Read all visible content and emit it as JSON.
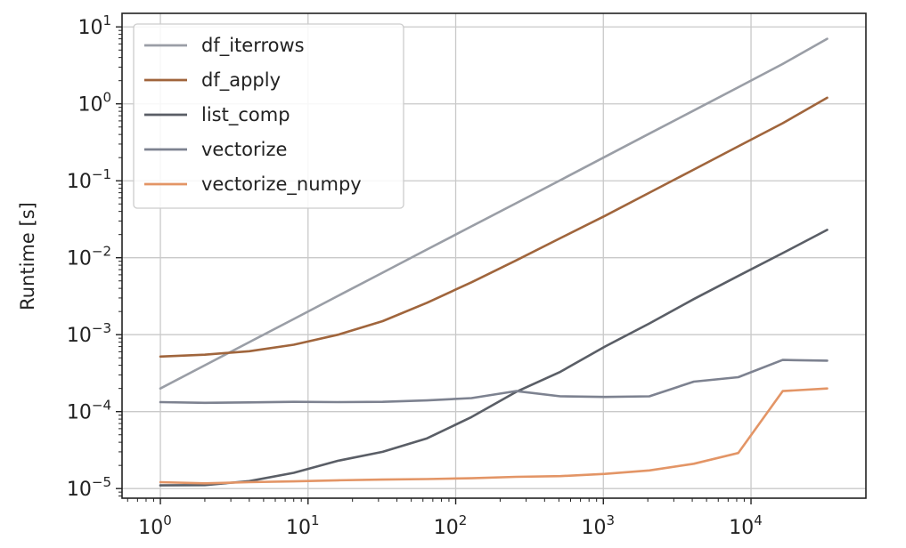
{
  "chart_data": {
    "type": "line",
    "title": "",
    "xlabel": "",
    "ylabel": "Runtime [s]",
    "xscale": "log",
    "yscale": "log",
    "xlim": [
      0.55,
      60000
    ],
    "ylim": [
      7.5e-06,
      15
    ],
    "grid": true,
    "legend_position": "top-left",
    "x_ticks": [
      {
        "base": "10",
        "exp": "0",
        "value": 1
      },
      {
        "base": "10",
        "exp": "1",
        "value": 10
      },
      {
        "base": "10",
        "exp": "2",
        "value": 100
      },
      {
        "base": "10",
        "exp": "3",
        "value": 1000
      },
      {
        "base": "10",
        "exp": "4",
        "value": 10000
      }
    ],
    "y_ticks": [
      {
        "base": "10",
        "exp": "−5",
        "value": 1e-05
      },
      {
        "base": "10",
        "exp": "−4",
        "value": 0.0001
      },
      {
        "base": "10",
        "exp": "−3",
        "value": 0.001
      },
      {
        "base": "10",
        "exp": "−2",
        "value": 0.01
      },
      {
        "base": "10",
        "exp": "−1",
        "value": 0.1
      },
      {
        "base": "10",
        "exp": "0",
        "value": 1
      },
      {
        "base": "10",
        "exp": "1",
        "value": 10
      }
    ],
    "x": [
      1,
      2,
      4,
      8,
      16,
      32,
      64,
      128,
      256,
      512,
      1024,
      2048,
      4096,
      8192,
      16384,
      32768
    ],
    "series": [
      {
        "name": "df_iterrows",
        "color": "#9a9ea6",
        "values": [
          0.0002,
          0.0004,
          0.0008,
          0.0016,
          0.0032,
          0.0064,
          0.0128,
          0.0256,
          0.051,
          0.102,
          0.205,
          0.41,
          0.82,
          1.64,
          3.3,
          7.0
        ]
      },
      {
        "name": "df_apply",
        "color": "#a0653c",
        "values": [
          0.00052,
          0.00055,
          0.00061,
          0.00074,
          0.001,
          0.0015,
          0.0026,
          0.0048,
          0.0092,
          0.018,
          0.035,
          0.07,
          0.14,
          0.28,
          0.56,
          1.2
        ]
      },
      {
        "name": "list_comp",
        "color": "#5a5e66",
        "values": [
          1.1e-05,
          1.11e-05,
          1.25e-05,
          1.6e-05,
          2.3e-05,
          3e-05,
          4.5e-05,
          8.5e-05,
          0.00018,
          0.00033,
          0.0007,
          0.0014,
          0.0029,
          0.0058,
          0.0115,
          0.023
        ]
      },
      {
        "name": "vectorize",
        "color": "#7d8290",
        "values": [
          0.000133,
          0.00013,
          0.000132,
          0.000134,
          0.000133,
          0.000134,
          0.00014,
          0.00015,
          0.000185,
          0.000158,
          0.000155,
          0.000158,
          0.000245,
          0.00028,
          0.00047,
          0.00046
        ]
      },
      {
        "name": "vectorize_numpy",
        "color": "#e39566",
        "values": [
          1.21e-05,
          1.17e-05,
          1.21e-05,
          1.24e-05,
          1.28e-05,
          1.31e-05,
          1.33e-05,
          1.36e-05,
          1.42e-05,
          1.45e-05,
          1.55e-05,
          1.72e-05,
          2.1e-05,
          2.9e-05,
          0.000185,
          0.0002
        ]
      }
    ]
  }
}
